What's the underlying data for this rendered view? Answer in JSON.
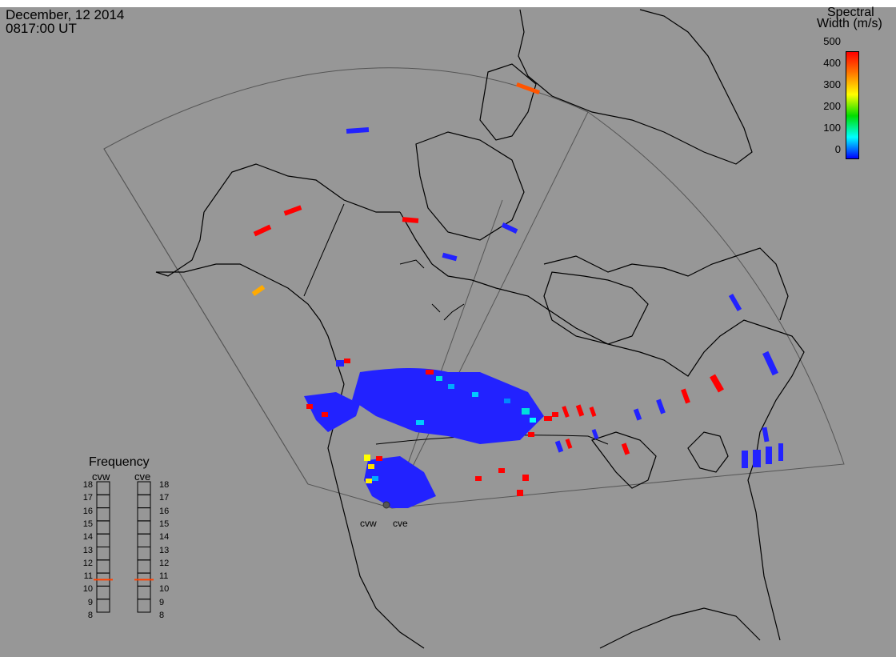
{
  "header": {
    "date": "December, 12 2014",
    "time": "0817:00 UT"
  },
  "colorbar": {
    "title_line1": "Spectral",
    "title_line2": "Width (m/s)",
    "ticks": [
      "500",
      "400",
      "300",
      "200",
      "100",
      "0"
    ],
    "colors": [
      "#ff0000",
      "#ff7a00",
      "#ffff00",
      "#00dd00",
      "#00ffff",
      "#0000ff"
    ]
  },
  "frequency": {
    "title": "Frequency",
    "radars": [
      "cvw",
      "cve"
    ],
    "ticks": [
      "18",
      "17",
      "16",
      "15",
      "14",
      "13",
      "12",
      "11",
      "10",
      "9",
      "8"
    ],
    "current_mhz": {
      "cvw": 10.8,
      "cve": 10.8
    },
    "marker_color": "#ff4000"
  },
  "radar_labels": [
    "cvw",
    "cve"
  ],
  "colors": {
    "background": "#979797",
    "land": "#000000",
    "echo_low": "#2222ff",
    "echo_high": "#ff0000"
  }
}
